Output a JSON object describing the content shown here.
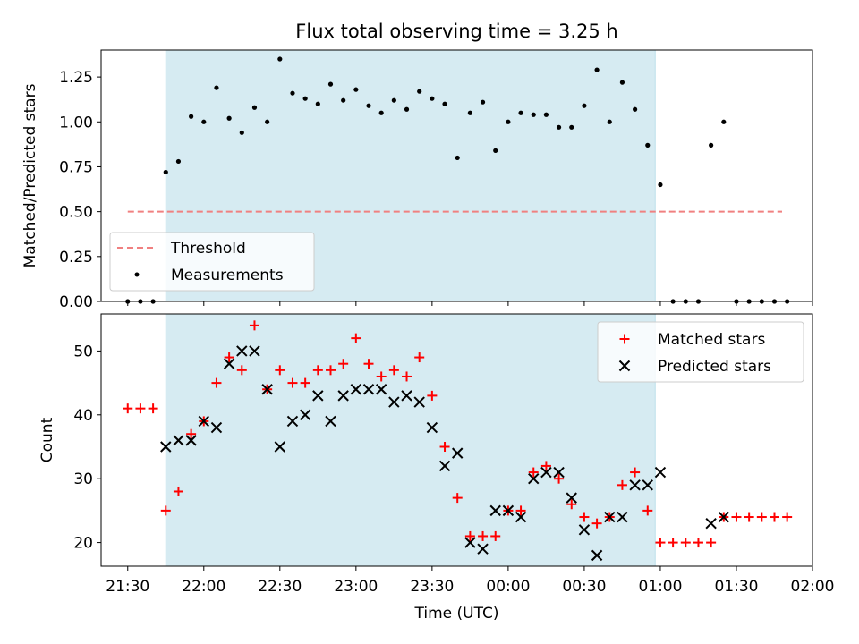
{
  "chart_data": [
    {
      "type": "scatter",
      "title": "Flux total observing time = 3.25 h",
      "ylabel": "Matched/Predicted stars",
      "xlabel": "",
      "ylim": [
        0,
        1.4
      ],
      "yticks": [
        "0.00",
        "0.25",
        "0.50",
        "0.75",
        "1.00",
        "1.25"
      ],
      "x_unit": "minutes since 21:30 UTC as shown on shared time axis",
      "shaded_interval": [
        "21:45",
        "00:58"
      ],
      "threshold": {
        "name": "Threshold",
        "value": 0.5,
        "x_range": [
          "21:30",
          "01:48"
        ],
        "color": "#f08080"
      },
      "series": [
        {
          "name": "Measurements",
          "color": "#000000",
          "points": [
            [
              "21:30",
              0
            ],
            [
              "21:35",
              0
            ],
            [
              "21:40",
              0
            ],
            [
              "21:45",
              0.72
            ],
            [
              "21:50",
              0.78
            ],
            [
              "21:55",
              1.03
            ],
            [
              "22:00",
              1.0
            ],
            [
              "22:05",
              1.19
            ],
            [
              "22:10",
              1.02
            ],
            [
              "22:15",
              0.94
            ],
            [
              "22:20",
              1.08
            ],
            [
              "22:25",
              1.0
            ],
            [
              "22:30",
              1.35
            ],
            [
              "22:35",
              1.16
            ],
            [
              "22:40",
              1.13
            ],
            [
              "22:45",
              1.1
            ],
            [
              "22:50",
              1.21
            ],
            [
              "22:55",
              1.12
            ],
            [
              "23:00",
              1.18
            ],
            [
              "23:05",
              1.09
            ],
            [
              "23:10",
              1.05
            ],
            [
              "23:15",
              1.12
            ],
            [
              "23:20",
              1.07
            ],
            [
              "23:25",
              1.17
            ],
            [
              "23:30",
              1.13
            ],
            [
              "23:35",
              1.1
            ],
            [
              "23:40",
              0.8
            ],
            [
              "23:45",
              1.05
            ],
            [
              "23:50",
              1.11
            ],
            [
              "23:55",
              0.84
            ],
            [
              "00:00",
              1.0
            ],
            [
              "00:05",
              1.05
            ],
            [
              "00:10",
              1.04
            ],
            [
              "00:15",
              1.04
            ],
            [
              "00:20",
              0.97
            ],
            [
              "00:25",
              0.97
            ],
            [
              "00:30",
              1.09
            ],
            [
              "00:35",
              1.29
            ],
            [
              "00:40",
              1.0
            ],
            [
              "00:45",
              1.22
            ],
            [
              "00:50",
              1.07
            ],
            [
              "00:55",
              0.87
            ],
            [
              "01:00",
              0.65
            ],
            [
              "01:05",
              0
            ],
            [
              "01:10",
              0
            ],
            [
              "01:15",
              0
            ],
            [
              "01:20",
              0.87
            ],
            [
              "01:25",
              1.0
            ],
            [
              "01:30",
              0
            ],
            [
              "01:35",
              0
            ],
            [
              "01:40",
              0
            ],
            [
              "01:45",
              0
            ],
            [
              "01:50",
              0
            ]
          ]
        }
      ],
      "legend": "lower-left"
    },
    {
      "type": "scatter",
      "title": "",
      "ylabel": "Count",
      "xlabel": "Time (UTC)",
      "ylim": [
        16.3,
        55.8
      ],
      "yticks": [
        "20",
        "30",
        "40",
        "50"
      ],
      "xticks": [
        "21:30",
        "22:00",
        "22:30",
        "23:00",
        "23:30",
        "00:00",
        "00:30",
        "01:00",
        "01:30",
        "02:00"
      ],
      "shaded_interval": [
        "21:45",
        "00:58"
      ],
      "series": [
        {
          "name": "Matched stars",
          "marker": "+",
          "color": "#ff0000",
          "points": [
            [
              "21:30",
              41
            ],
            [
              "21:35",
              41
            ],
            [
              "21:40",
              41
            ],
            [
              "21:45",
              25
            ],
            [
              "21:50",
              28
            ],
            [
              "21:55",
              37
            ],
            [
              "22:00",
              39
            ],
            [
              "22:05",
              45
            ],
            [
              "22:10",
              49
            ],
            [
              "22:15",
              47
            ],
            [
              "22:20",
              54
            ],
            [
              "22:25",
              44
            ],
            [
              "22:30",
              47
            ],
            [
              "22:35",
              45
            ],
            [
              "22:40",
              45
            ],
            [
              "22:45",
              47
            ],
            [
              "22:50",
              47
            ],
            [
              "22:55",
              48
            ],
            [
              "23:00",
              52
            ],
            [
              "23:05",
              48
            ],
            [
              "23:10",
              46
            ],
            [
              "23:15",
              47
            ],
            [
              "23:20",
              46
            ],
            [
              "23:25",
              49
            ],
            [
              "23:30",
              43
            ],
            [
              "23:35",
              35
            ],
            [
              "23:40",
              27
            ],
            [
              "23:45",
              21
            ],
            [
              "23:50",
              21
            ],
            [
              "23:55",
              21
            ],
            [
              "00:00",
              25
            ],
            [
              "00:05",
              25
            ],
            [
              "00:10",
              31
            ],
            [
              "00:15",
              32
            ],
            [
              "00:20",
              30
            ],
            [
              "00:25",
              26
            ],
            [
              "00:30",
              24
            ],
            [
              "00:35",
              23
            ],
            [
              "00:40",
              24
            ],
            [
              "00:45",
              29
            ],
            [
              "00:50",
              31
            ],
            [
              "00:55",
              25
            ],
            [
              "01:00",
              20
            ],
            [
              "01:05",
              20
            ],
            [
              "01:10",
              20
            ],
            [
              "01:15",
              20
            ],
            [
              "01:20",
              20
            ],
            [
              "01:25",
              24
            ],
            [
              "01:30",
              24
            ],
            [
              "01:35",
              24
            ],
            [
              "01:40",
              24
            ],
            [
              "01:45",
              24
            ],
            [
              "01:50",
              24
            ]
          ]
        },
        {
          "name": "Predicted stars",
          "marker": "x",
          "color": "#000000",
          "points": [
            [
              "21:45",
              35
            ],
            [
              "21:50",
              36
            ],
            [
              "21:55",
              36
            ],
            [
              "22:00",
              39
            ],
            [
              "22:05",
              38
            ],
            [
              "22:10",
              48
            ],
            [
              "22:15",
              50
            ],
            [
              "22:20",
              50
            ],
            [
              "22:25",
              44
            ],
            [
              "22:30",
              35
            ],
            [
              "22:35",
              39
            ],
            [
              "22:40",
              40
            ],
            [
              "22:45",
              43
            ],
            [
              "22:50",
              39
            ],
            [
              "22:55",
              43
            ],
            [
              "23:00",
              44
            ],
            [
              "23:05",
              44
            ],
            [
              "23:10",
              44
            ],
            [
              "23:15",
              42
            ],
            [
              "23:20",
              43
            ],
            [
              "23:25",
              42
            ],
            [
              "23:30",
              38
            ],
            [
              "23:35",
              32
            ],
            [
              "23:40",
              34
            ],
            [
              "23:45",
              20
            ],
            [
              "23:50",
              19
            ],
            [
              "23:55",
              25
            ],
            [
              "00:00",
              25
            ],
            [
              "00:05",
              24
            ],
            [
              "00:10",
              30
            ],
            [
              "00:15",
              31
            ],
            [
              "00:20",
              31
            ],
            [
              "00:25",
              27
            ],
            [
              "00:30",
              22
            ],
            [
              "00:35",
              18
            ],
            [
              "00:40",
              24
            ],
            [
              "00:45",
              24
            ],
            [
              "00:50",
              29
            ],
            [
              "00:55",
              29
            ],
            [
              "01:00",
              31
            ],
            [
              "01:20",
              23
            ],
            [
              "01:25",
              24
            ]
          ]
        }
      ],
      "legend": "upper-right"
    }
  ]
}
